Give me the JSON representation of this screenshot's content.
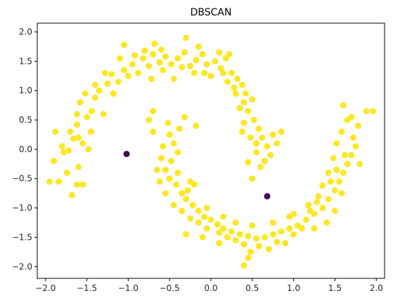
{
  "chart_data": {
    "type": "scatter",
    "title": "DBSCAN",
    "xlabel": "",
    "ylabel": "",
    "xlim": [
      -2.1,
      2.1
    ],
    "ylim": [
      -2.2,
      2.15
    ],
    "xticks": [
      "−2.0",
      "−1.5",
      "−1.0",
      "−0.5",
      "0.0",
      "0.5",
      "1.0",
      "1.5",
      "2.0"
    ],
    "xtick_values": [
      -2.0,
      -1.5,
      -1.0,
      -0.5,
      0.0,
      0.5,
      1.0,
      1.5,
      2.0
    ],
    "yticks": [
      "−2.0",
      "−1.5",
      "−1.0",
      "−0.5",
      "0.0",
      "0.5",
      "1.0",
      "1.5",
      "2.0"
    ],
    "ytick_values": [
      -2.0,
      -1.5,
      -1.0,
      -0.5,
      0.0,
      0.5,
      1.0,
      1.5,
      2.0
    ],
    "grid": false,
    "legend": "none",
    "series": [
      {
        "cluster": 0,
        "color": "#fde725",
        "points": [
          [
            -1.88,
            0.3
          ],
          [
            -1.8,
            0.05
          ],
          [
            -1.72,
            -0.02
          ],
          [
            -1.66,
            0.18
          ],
          [
            -1.6,
            -0.3
          ],
          [
            -1.74,
            -0.4
          ],
          [
            -1.55,
            0.1
          ],
          [
            -1.62,
            0.42
          ],
          [
            -1.5,
            0.55
          ],
          [
            -1.45,
            0.3
          ],
          [
            -1.58,
            0.8
          ],
          [
            -1.52,
            0.95
          ],
          [
            -1.44,
            0.65
          ],
          [
            -1.4,
            0.88
          ],
          [
            -1.3,
            0.6
          ],
          [
            -1.35,
            1.0
          ],
          [
            -1.25,
            1.12
          ],
          [
            -1.18,
            0.95
          ],
          [
            -1.2,
            1.28
          ],
          [
            -1.12,
            1.15
          ],
          [
            -1.05,
            1.35
          ],
          [
            -1.0,
            1.25
          ],
          [
            -0.95,
            1.45
          ],
          [
            -0.88,
            1.3
          ],
          [
            -0.82,
            1.55
          ],
          [
            -0.75,
            1.42
          ],
          [
            -0.7,
            1.62
          ],
          [
            -0.62,
            1.48
          ],
          [
            -0.55,
            1.58
          ],
          [
            -0.48,
            1.45
          ],
          [
            -0.4,
            1.55
          ],
          [
            -0.32,
            1.65
          ],
          [
            -0.25,
            1.42
          ],
          [
            -0.18,
            1.52
          ],
          [
            -0.1,
            1.62
          ],
          [
            -0.05,
            1.45
          ],
          [
            0.05,
            1.5
          ],
          [
            0.12,
            1.38
          ],
          [
            0.18,
            1.55
          ],
          [
            0.25,
            1.3
          ],
          [
            0.32,
            1.2
          ],
          [
            0.38,
            1.1
          ],
          [
            0.3,
            0.95
          ],
          [
            0.4,
            0.8
          ],
          [
            0.45,
            0.65
          ],
          [
            0.52,
            0.5
          ],
          [
            0.58,
            0.35
          ],
          [
            0.62,
            0.2
          ],
          [
            0.68,
            0.05
          ],
          [
            0.72,
            -0.1
          ],
          [
            0.75,
            0.25
          ],
          [
            0.8,
            0.1
          ],
          [
            0.85,
            0.3
          ],
          [
            0.55,
            -0.05
          ],
          [
            0.6,
            -0.3
          ],
          [
            0.5,
            -0.5
          ],
          [
            0.45,
            -0.22
          ],
          [
            0.28,
            1.05
          ],
          [
            0.2,
            1.15
          ],
          [
            0.15,
            1.3
          ],
          [
            -0.08,
            1.3
          ],
          [
            -0.2,
            1.3
          ],
          [
            -0.35,
            1.4
          ],
          [
            -0.58,
            1.35
          ],
          [
            -0.68,
            1.8
          ],
          [
            -0.8,
            1.68
          ],
          [
            -0.92,
            1.6
          ],
          [
            -1.05,
            1.78
          ],
          [
            -1.1,
            1.55
          ],
          [
            -0.6,
            1.7
          ],
          [
            -0.3,
            1.9
          ],
          [
            -0.15,
            1.75
          ],
          [
            0.1,
            1.65
          ],
          [
            0.22,
            1.62
          ],
          [
            -1.4,
            1.1
          ],
          [
            -1.28,
            1.3
          ],
          [
            -1.62,
            0.6
          ],
          [
            -1.7,
            0.3
          ],
          [
            -1.78,
            -0.05
          ],
          [
            -1.84,
            -0.55
          ],
          [
            -1.9,
            -0.2
          ],
          [
            -1.95,
            -0.55
          ],
          [
            -1.68,
            -0.78
          ],
          [
            -1.55,
            -0.6
          ],
          [
            -1.62,
            -0.6
          ],
          [
            -1.48,
            0.0
          ],
          [
            -1.6,
            0.2
          ],
          [
            0.0,
            1.25
          ],
          [
            -0.45,
            1.2
          ],
          [
            -0.72,
            1.2
          ],
          [
            0.35,
            0.7
          ],
          [
            0.4,
            0.45
          ],
          [
            0.5,
            0.85
          ],
          [
            0.48,
            0.2
          ],
          [
            0.55,
            0.1
          ],
          [
            0.65,
            -0.2
          ],
          [
            0.42,
            0.95
          ],
          [
            0.38,
            0.3
          ],
          [
            -0.5,
            0.25
          ],
          [
            -0.45,
            0.1
          ],
          [
            -0.4,
            -0.05
          ],
          [
            -0.48,
            -0.2
          ],
          [
            -0.55,
            -0.35
          ],
          [
            -0.5,
            -0.5
          ],
          [
            -0.42,
            -0.6
          ],
          [
            -0.35,
            -0.75
          ],
          [
            -0.3,
            -0.85
          ],
          [
            -0.22,
            -0.95
          ],
          [
            -0.15,
            -1.05
          ],
          [
            -0.08,
            -1.15
          ],
          [
            0.0,
            -1.2
          ],
          [
            0.08,
            -1.28
          ],
          [
            0.15,
            -1.35
          ],
          [
            0.25,
            -1.4
          ],
          [
            0.35,
            -1.45
          ],
          [
            0.45,
            -1.48
          ],
          [
            0.55,
            -1.52
          ],
          [
            0.65,
            -1.5
          ],
          [
            0.75,
            -1.45
          ],
          [
            0.85,
            -1.4
          ],
          [
            0.95,
            -1.35
          ],
          [
            1.05,
            -1.3
          ],
          [
            1.15,
            -1.2
          ],
          [
            1.25,
            -1.1
          ],
          [
            1.35,
            -1.0
          ],
          [
            1.42,
            -0.85
          ],
          [
            1.5,
            -0.7
          ],
          [
            1.55,
            -0.55
          ],
          [
            1.6,
            -0.4
          ],
          [
            1.65,
            -0.25
          ],
          [
            1.7,
            -0.1
          ],
          [
            1.75,
            0.05
          ],
          [
            1.72,
            0.2
          ],
          [
            1.78,
            0.4
          ],
          [
            1.65,
            0.5
          ],
          [
            1.58,
            0.3
          ],
          [
            1.52,
            0.1
          ],
          [
            1.48,
            -0.15
          ],
          [
            1.42,
            -0.4
          ],
          [
            1.35,
            -0.62
          ],
          [
            1.28,
            -0.9
          ],
          [
            1.2,
            -1.05
          ],
          [
            1.1,
            -1.35
          ],
          [
            1.0,
            -1.45
          ],
          [
            0.9,
            -1.6
          ],
          [
            0.8,
            -1.58
          ],
          [
            0.7,
            -1.7
          ],
          [
            0.58,
            -1.65
          ],
          [
            0.48,
            -1.75
          ],
          [
            0.4,
            -1.62
          ],
          [
            0.3,
            -1.55
          ],
          [
            0.2,
            -1.5
          ],
          [
            0.1,
            -1.42
          ],
          [
            -0.05,
            -1.35
          ],
          [
            -0.15,
            -1.25
          ],
          [
            -0.25,
            -1.18
          ],
          [
            -0.35,
            -1.05
          ],
          [
            -0.45,
            -0.95
          ],
          [
            -0.55,
            -0.75
          ],
          [
            -0.62,
            -0.55
          ],
          [
            -0.65,
            -0.35
          ],
          [
            -0.6,
            -0.15
          ],
          [
            -0.58,
            0.05
          ],
          [
            -0.52,
            0.45
          ],
          [
            -0.38,
            0.35
          ],
          [
            -0.7,
            0.65
          ],
          [
            -0.75,
            0.5
          ],
          [
            -0.7,
            0.3
          ],
          [
            -0.32,
            0.55
          ],
          [
            -0.18,
            0.4
          ],
          [
            -0.4,
            -0.4
          ],
          [
            -0.25,
            -0.55
          ],
          [
            -0.28,
            -0.7
          ],
          [
            -0.05,
            -1.0
          ],
          [
            0.3,
            -1.25
          ],
          [
            0.5,
            -1.3
          ],
          [
            0.75,
            -1.25
          ],
          [
            0.95,
            -1.15
          ],
          [
            1.18,
            -0.95
          ],
          [
            1.3,
            -0.8
          ],
          [
            1.45,
            -0.55
          ],
          [
            1.52,
            -0.35
          ],
          [
            1.62,
            -0.1
          ],
          [
            1.8,
            -0.25
          ],
          [
            1.88,
            0.65
          ],
          [
            1.96,
            0.65
          ],
          [
            1.6,
            0.75
          ],
          [
            1.7,
            0.55
          ],
          [
            0.4,
            -1.98
          ],
          [
            0.45,
            -1.85
          ],
          [
            0.1,
            -1.6
          ],
          [
            -0.1,
            -1.5
          ],
          [
            -0.3,
            -1.45
          ],
          [
            -0.2,
            -0.6
          ],
          [
            0.15,
            -1.15
          ],
          [
            1.0,
            -1.1
          ],
          [
            1.25,
            -1.35
          ],
          [
            1.4,
            -1.25
          ],
          [
            1.5,
            -1.05
          ],
          [
            1.58,
            -0.75
          ]
        ]
      },
      {
        "cluster": 1,
        "color": "#440154",
        "points": [
          [
            -1.02,
            -0.08
          ],
          [
            0.68,
            -0.8
          ]
        ]
      }
    ]
  }
}
